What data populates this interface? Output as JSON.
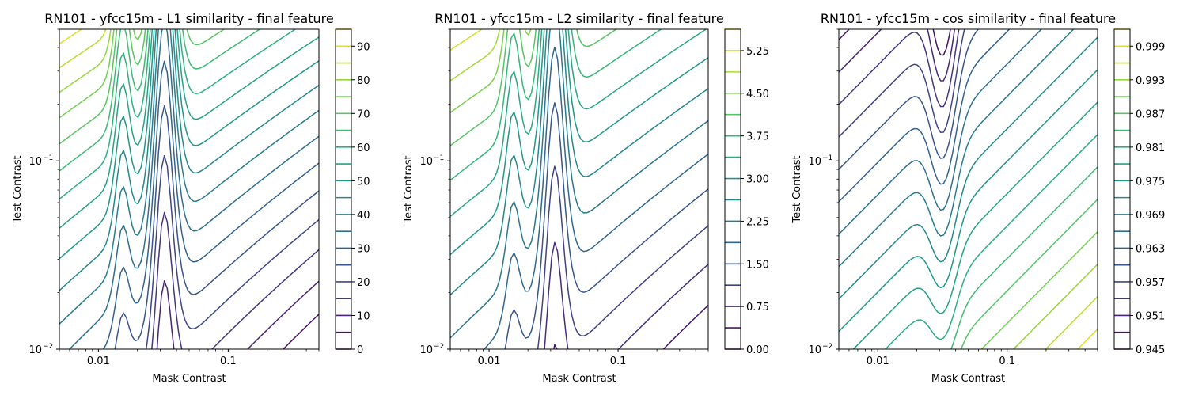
{
  "figure": {
    "background": "#ffffff"
  },
  "chart_data": [
    {
      "type": "contour",
      "title": "RN101 - yfcc15m - L1 similarity - final feature",
      "xlabel": "Mask Contrast",
      "ylabel": "Test Contrast",
      "xscale": "log",
      "yscale": "log",
      "xlim": [
        0.005,
        0.5
      ],
      "ylim": [
        0.01,
        0.5
      ],
      "x_ticks": [
        {
          "value": 0.01,
          "label": "0.01"
        },
        {
          "value": 0.1,
          "label": "0.1"
        }
      ],
      "y_ticks": [
        {
          "value": 0.01,
          "label": "10",
          "exp": "−2"
        },
        {
          "value": 0.1,
          "label": "10",
          "exp": "−1"
        }
      ],
      "colorbar": {
        "min": 0,
        "max": 95,
        "levels": [
          0,
          5,
          10,
          15,
          20,
          25,
          30,
          35,
          40,
          45,
          50,
          55,
          60,
          65,
          70,
          75,
          80,
          85,
          90,
          95
        ],
        "tick_labels": [
          {
            "value": 0,
            "label": "0"
          },
          {
            "value": 10,
            "label": "10"
          },
          {
            "value": 20,
            "label": "20"
          },
          {
            "value": 30,
            "label": "30"
          },
          {
            "value": 40,
            "label": "40"
          },
          {
            "value": 50,
            "label": "50"
          },
          {
            "value": 60,
            "label": "60"
          },
          {
            "value": 70,
            "label": "70"
          },
          {
            "value": 80,
            "label": "80"
          },
          {
            "value": 90,
            "label": "90"
          }
        ]
      },
      "surface": {
        "valley_x": 0.032,
        "low_corner": "bottom-right",
        "high_corner": "top-left"
      },
      "colormap": "viridis"
    },
    {
      "type": "contour",
      "title": "RN101 - yfcc15m - L2 similarity - final feature",
      "xlabel": "Mask Contrast",
      "ylabel": "Test Contrast",
      "xscale": "log",
      "yscale": "log",
      "xlim": [
        0.005,
        0.5
      ],
      "ylim": [
        0.01,
        0.5
      ],
      "x_ticks": [
        {
          "value": 0.01,
          "label": "0.01"
        },
        {
          "value": 0.1,
          "label": "0.1"
        }
      ],
      "y_ticks": [
        {
          "value": 0.01,
          "label": "10",
          "exp": "−2"
        },
        {
          "value": 0.1,
          "label": "10",
          "exp": "−1"
        }
      ],
      "colorbar": {
        "min": 0,
        "max": 5.625,
        "levels": [
          0,
          0.375,
          0.75,
          1.125,
          1.5,
          1.875,
          2.25,
          2.625,
          3.0,
          3.375,
          3.75,
          4.125,
          4.5,
          4.875,
          5.25,
          5.625
        ],
        "tick_labels": [
          {
            "value": 0,
            "label": "0.00"
          },
          {
            "value": 0.75,
            "label": "0.75"
          },
          {
            "value": 1.5,
            "label": "1.50"
          },
          {
            "value": 2.25,
            "label": "2.25"
          },
          {
            "value": 3.0,
            "label": "3.00"
          },
          {
            "value": 3.75,
            "label": "3.75"
          },
          {
            "value": 4.5,
            "label": "4.50"
          },
          {
            "value": 5.25,
            "label": "5.25"
          }
        ]
      },
      "surface": {
        "valley_x": 0.032,
        "low_corner": "bottom-right",
        "high_corner": "top-left"
      },
      "colormap": "viridis"
    },
    {
      "type": "contour",
      "title": "RN101 - yfcc15m - cos similarity - final feature",
      "xlabel": "Mask Contrast",
      "ylabel": "Test Contrast",
      "xscale": "log",
      "yscale": "log",
      "xlim": [
        0.005,
        0.5
      ],
      "ylim": [
        0.01,
        0.5
      ],
      "x_ticks": [
        {
          "value": 0.01,
          "label": "0.01"
        },
        {
          "value": 0.1,
          "label": "0.1"
        }
      ],
      "y_ticks": [
        {
          "value": 0.01,
          "label": "10",
          "exp": "−2"
        },
        {
          "value": 0.1,
          "label": "10",
          "exp": "−1"
        }
      ],
      "colorbar": {
        "min": 0.945,
        "max": 1.002,
        "levels": [
          0.945,
          0.948,
          0.951,
          0.954,
          0.957,
          0.96,
          0.963,
          0.966,
          0.969,
          0.972,
          0.975,
          0.978,
          0.981,
          0.984,
          0.987,
          0.99,
          0.993,
          0.996,
          0.999,
          1.002
        ],
        "tick_labels": [
          {
            "value": 0.945,
            "label": "0.945"
          },
          {
            "value": 0.951,
            "label": "0.951"
          },
          {
            "value": 0.957,
            "label": "0.957"
          },
          {
            "value": 0.963,
            "label": "0.963"
          },
          {
            "value": 0.969,
            "label": "0.969"
          },
          {
            "value": 0.975,
            "label": "0.975"
          },
          {
            "value": 0.981,
            "label": "0.981"
          },
          {
            "value": 0.987,
            "label": "0.987"
          },
          {
            "value": 0.993,
            "label": "0.993"
          },
          {
            "value": 0.999,
            "label": "0.999"
          }
        ]
      },
      "surface": {
        "valley_x": 0.032,
        "low_corner": "top-left",
        "high_corner": "bottom-right"
      },
      "colormap": "viridis"
    }
  ]
}
